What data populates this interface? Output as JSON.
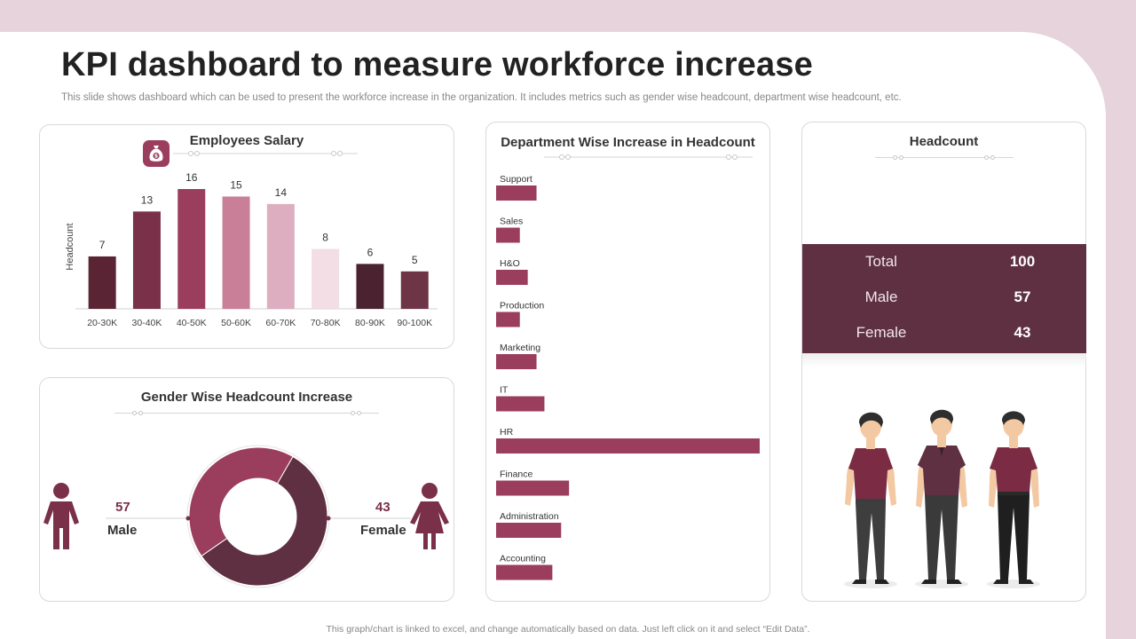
{
  "page": {
    "title": "KPI dashboard to measure workforce increase",
    "subtitle": "This slide shows dashboard which can be used to present the workforce increase in the organization. It includes metrics such as gender wise headcount, department wise headcount, etc.",
    "footer": "This graph/chart is linked to excel, and change automatically based on data. Just left click on it and select “Edit Data”."
  },
  "colors": {
    "accent": "#9b3d5c",
    "dark": "#5e3041",
    "light_pink": "#f2dee4",
    "frame": "#e6d3dc"
  },
  "icons": {
    "salary": "money-bag-icon",
    "male": "male-person-icon",
    "female": "female-person-icon"
  },
  "salary_panel": {
    "title": "Employees Salary"
  },
  "department_panel": {
    "title": "Department Wise Increase in Headcount"
  },
  "gender_panel": {
    "title": "Gender Wise Headcount Increase",
    "male_label": "Male",
    "male_value": "57",
    "female_label": "Female",
    "female_value": "43"
  },
  "headcount_panel": {
    "title": "Headcount",
    "rows": [
      {
        "label": "Total",
        "value": "100"
      },
      {
        "label": "Male",
        "value": "57"
      },
      {
        "label": "Female",
        "value": "43"
      }
    ]
  },
  "chart_data": [
    {
      "type": "bar",
      "title": "Employees Salary",
      "xlabel": "",
      "ylabel": "Headcount",
      "categories": [
        "20-30K",
        "30-40K",
        "40-50K",
        "50-60K",
        "60-70K",
        "70-80K",
        "80-90K",
        "90-100K"
      ],
      "values": [
        7,
        13,
        16,
        15,
        14,
        8,
        6,
        5
      ],
      "bar_colors": [
        "#5b2435",
        "#7a3048",
        "#9b3d5c",
        "#c97f98",
        "#ddaec0",
        "#f2dee4",
        "#4a2230",
        "#6e3546"
      ],
      "ylim": [
        0,
        16
      ],
      "grid": false
    },
    {
      "type": "bar",
      "orientation": "horizontal",
      "title": "Department Wise Increase in Headcount",
      "categories": [
        "Support",
        "Sales",
        "H&O",
        "Production",
        "Marketing",
        "IT",
        "HR",
        "Finance",
        "Administration",
        "Accounting"
      ],
      "values": [
        4.6,
        2.7,
        3.6,
        2.7,
        4.6,
        5.5,
        30,
        8.3,
        7.4,
        6.4
      ],
      "xlim": [
        0,
        30
      ],
      "grid": false
    },
    {
      "type": "pie",
      "title": "Gender Wise Headcount Increase",
      "categories": [
        "Male",
        "Female"
      ],
      "values": [
        57,
        43
      ],
      "colors": [
        "#5e3041",
        "#9b3d5c"
      ],
      "donut": true
    }
  ]
}
